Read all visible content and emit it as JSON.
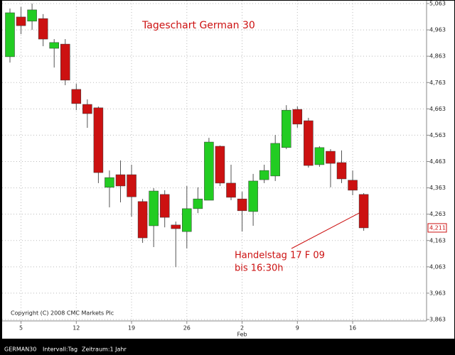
{
  "chart_data": {
    "type": "candlestick",
    "title": "Tageschart German 30",
    "copyright": "Copyright (C) 2008 CMC Markets Plc",
    "annotation": [
      "Handelstag 17 F 09",
      "bis 16:30h"
    ],
    "footer": [
      "GERMAN30",
      "Intervall:Tag",
      "Zeitraum:1 Jahr"
    ],
    "categories": [
      null,
      "5",
      null,
      null,
      null,
      null,
      "12",
      null,
      null,
      null,
      null,
      "19",
      null,
      null,
      null,
      null,
      "26",
      null,
      null,
      null,
      null,
      "2",
      null,
      null,
      null,
      null,
      "9",
      null,
      null,
      null,
      null,
      "16",
      null
    ],
    "category_months": [
      null,
      null,
      null,
      null,
      null,
      null,
      null,
      null,
      null,
      null,
      null,
      null,
      null,
      null,
      null,
      null,
      null,
      null,
      null,
      null,
      null,
      "Feb",
      null,
      null,
      null,
      null,
      null,
      null,
      null,
      null,
      null,
      null,
      null
    ],
    "series": [
      {
        "name": "GERMAN30",
        "open": [
          4861,
          5012,
          4996,
          5006,
          4893,
          4909,
          4737,
          4680,
          4667,
          4365,
          4413,
          4413,
          4311,
          4219,
          4338,
          4222,
          4197,
          4284,
          4316,
          4521,
          4381,
          4321,
          4273,
          4394,
          4408,
          4516,
          4661,
          4618,
          4451,
          4502,
          4459,
          4392,
          4338
        ],
        "high": [
          5044,
          5050,
          5063,
          5023,
          4928,
          4928,
          4758,
          4699,
          4672,
          4429,
          4467,
          4451,
          4321,
          4362,
          4354,
          4235,
          4370,
          4365,
          4553,
          4524,
          4451,
          4348,
          4416,
          4451,
          4564,
          4677,
          4672,
          4629,
          4521,
          4510,
          4505,
          4429,
          4343
        ],
        "low": [
          4839,
          4947,
          4963,
          4901,
          4820,
          4753,
          4658,
          4591,
          4381,
          4289,
          4308,
          4254,
          4154,
          4138,
          4213,
          4062,
          4133,
          4267,
          4316,
          4370,
          4316,
          4197,
          4219,
          4381,
          4389,
          4510,
          4591,
          4440,
          4443,
          4365,
          4381,
          4335,
          4200
        ],
        "close": [
          5028,
          4979,
          5039,
          4928,
          4915,
          4772,
          4683,
          4645,
          4421,
          4402,
          4370,
          4329,
          4173,
          4351,
          4251,
          4208,
          4284,
          4321,
          4537,
          4381,
          4327,
          4276,
          4389,
          4429,
          4532,
          4658,
          4605,
          4448,
          4516,
          4456,
          4397,
          4354,
          4211
        ]
      }
    ],
    "up_color": "#22cc22",
    "down_color": "#cc1111",
    "last_price": {
      "value": 4211,
      "label": "4,211"
    },
    "ylim": [
      3863,
      5063
    ],
    "yticks": [
      {
        "value": 3863,
        "label": "3,863"
      },
      {
        "value": 3963,
        "label": "3,963"
      },
      {
        "value": 4063,
        "label": "4,063"
      },
      {
        "value": 4163,
        "label": "4,163"
      },
      {
        "value": 4263,
        "label": "4,263"
      },
      {
        "value": 4363,
        "label": "4,363"
      },
      {
        "value": 4463,
        "label": "4,463"
      },
      {
        "value": 4563,
        "label": "4,563"
      },
      {
        "value": 4663,
        "label": "4,663"
      },
      {
        "value": 4763,
        "label": "4,763"
      },
      {
        "value": 4863,
        "label": "4,863"
      },
      {
        "value": 4963,
        "label": "4,963"
      },
      {
        "value": 5063,
        "label": "5,063"
      }
    ],
    "grid": true
  }
}
